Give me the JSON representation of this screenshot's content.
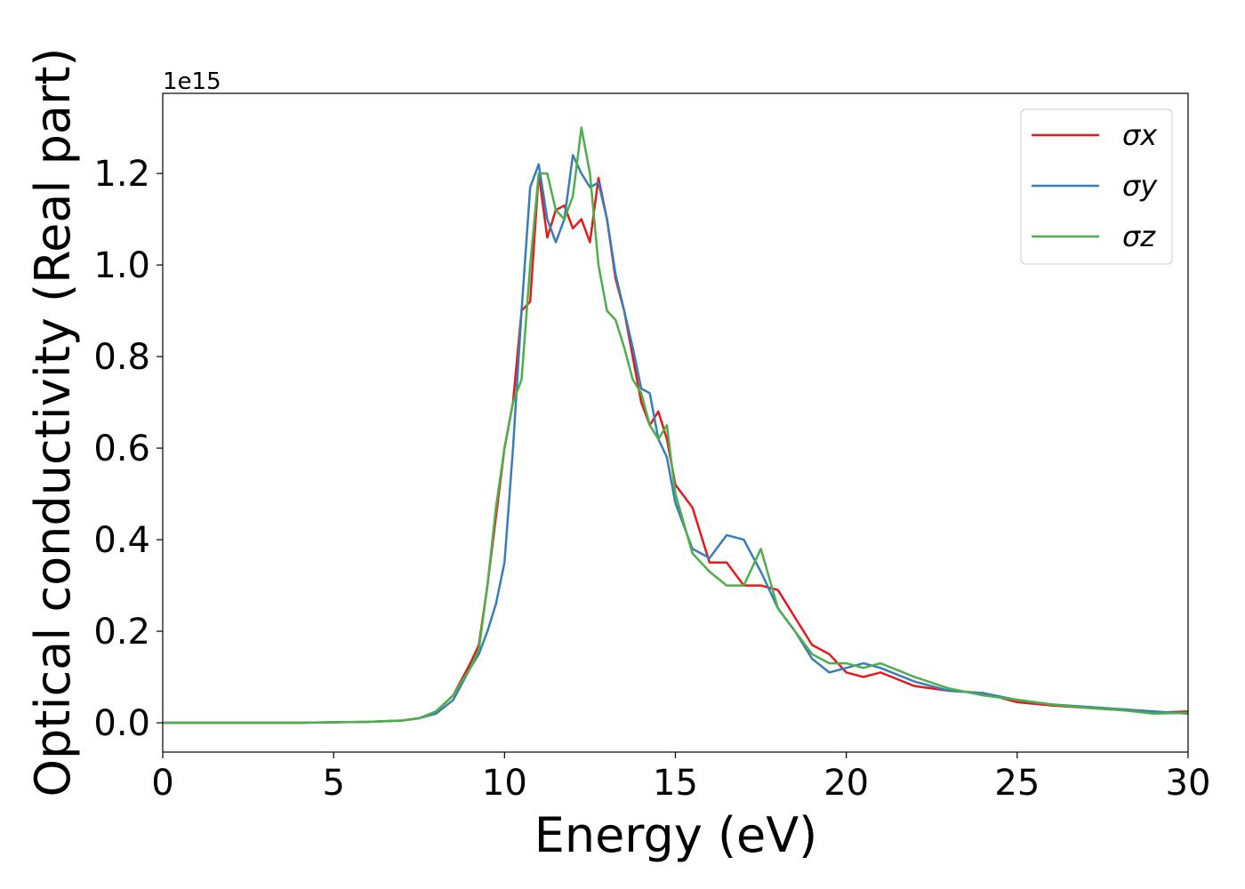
{
  "chart_data": {
    "type": "line",
    "xlabel": "Energy (eV)",
    "ylabel": "Optical conductivity (Real part)",
    "y_offset_label": "1e15",
    "x": [
      0,
      2,
      4,
      6,
      7,
      7.5,
      8,
      8.5,
      9,
      9.25,
      9.5,
      9.75,
      10,
      10.25,
      10.5,
      10.75,
      11,
      11.25,
      11.5,
      11.75,
      12,
      12.25,
      12.5,
      12.75,
      13,
      13.25,
      13.5,
      13.75,
      14,
      14.25,
      14.5,
      14.75,
      15,
      15.5,
      16,
      16.5,
      17,
      17.5,
      18,
      18.5,
      19,
      19.5,
      20,
      20.5,
      21,
      22,
      23,
      24,
      25,
      26,
      27,
      28,
      29,
      30
    ],
    "series": [
      {
        "name": "σx",
        "color": "#e41a1c",
        "values": [
          0,
          0,
          0,
          0.002,
          0.005,
          0.01,
          0.025,
          0.06,
          0.13,
          0.17,
          0.3,
          0.45,
          0.6,
          0.7,
          0.9,
          0.92,
          1.2,
          1.06,
          1.12,
          1.13,
          1.08,
          1.1,
          1.05,
          1.19,
          1.1,
          0.97,
          0.9,
          0.8,
          0.7,
          0.65,
          0.68,
          0.62,
          0.52,
          0.47,
          0.35,
          0.35,
          0.3,
          0.3,
          0.29,
          0.23,
          0.17,
          0.15,
          0.11,
          0.1,
          0.11,
          0.08,
          0.07,
          0.065,
          0.045,
          0.038,
          0.033,
          0.028,
          0.022,
          0.025
        ]
      },
      {
        "name": "σy",
        "color": "#377eb8",
        "values": [
          0,
          0,
          0,
          0.002,
          0.005,
          0.01,
          0.02,
          0.05,
          0.12,
          0.15,
          0.2,
          0.26,
          0.35,
          0.6,
          0.9,
          1.17,
          1.22,
          1.1,
          1.05,
          1.1,
          1.24,
          1.2,
          1.17,
          1.18,
          1.1,
          0.98,
          0.9,
          0.82,
          0.73,
          0.72,
          0.62,
          0.58,
          0.48,
          0.38,
          0.36,
          0.41,
          0.4,
          0.33,
          0.25,
          0.2,
          0.14,
          0.11,
          0.12,
          0.13,
          0.12,
          0.09,
          0.07,
          0.065,
          0.05,
          0.04,
          0.035,
          0.03,
          0.025,
          0.02
        ]
      },
      {
        "name": "σz",
        "color": "#4daf4a",
        "values": [
          0,
          0,
          0,
          0.002,
          0.005,
          0.01,
          0.025,
          0.06,
          0.12,
          0.16,
          0.3,
          0.47,
          0.6,
          0.7,
          0.75,
          1.0,
          1.2,
          1.2,
          1.12,
          1.1,
          1.15,
          1.3,
          1.2,
          1.0,
          0.9,
          0.88,
          0.82,
          0.75,
          0.72,
          0.65,
          0.62,
          0.65,
          0.5,
          0.37,
          0.33,
          0.3,
          0.3,
          0.38,
          0.25,
          0.2,
          0.15,
          0.13,
          0.13,
          0.12,
          0.13,
          0.1,
          0.075,
          0.06,
          0.05,
          0.04,
          0.033,
          0.028,
          0.02,
          0.022
        ]
      }
    ],
    "xlim": [
      0,
      30
    ],
    "xticks": [
      0,
      5,
      10,
      15,
      20,
      25,
      30
    ],
    "ylim": [
      -0.064,
      1.375
    ],
    "yticks": [
      {
        "value": 0,
        "label": "0.0"
      },
      {
        "value": 0.2,
        "label": "0.2"
      },
      {
        "value": 0.4,
        "label": "0.4"
      },
      {
        "value": 0.6,
        "label": "0.6"
      },
      {
        "value": 0.8,
        "label": "0.8"
      },
      {
        "value": 1.0,
        "label": "1.0"
      },
      {
        "value": 1.2,
        "label": "1.2"
      }
    ],
    "legend": "upper right",
    "grid": false
  }
}
